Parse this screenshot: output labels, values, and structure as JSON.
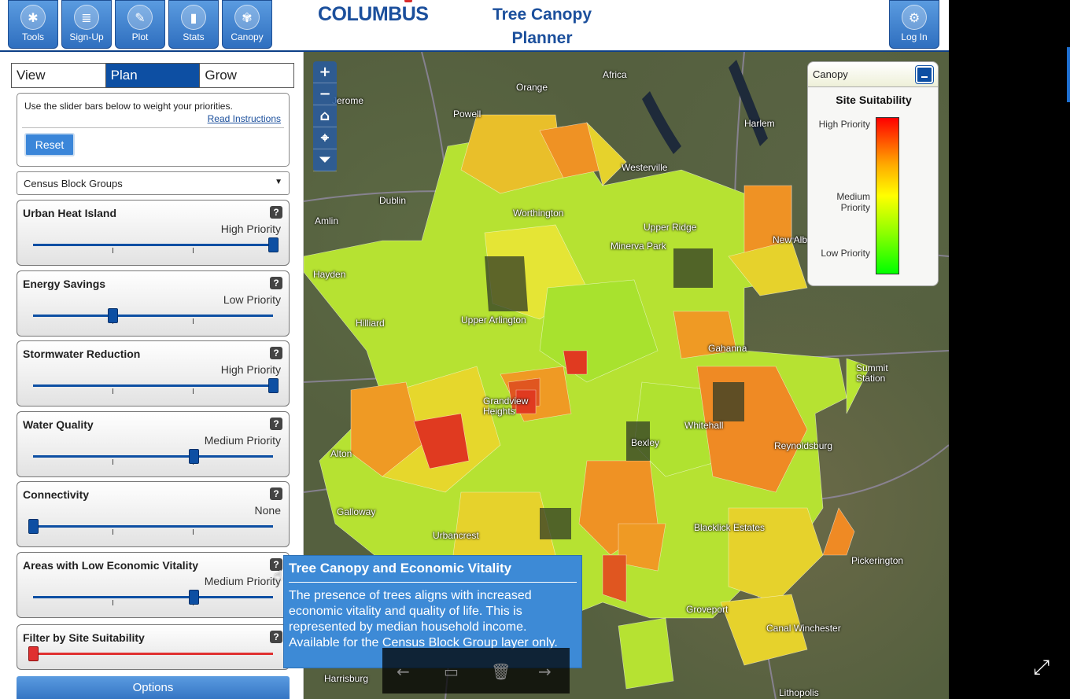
{
  "header": {
    "tools": [
      {
        "label": "Tools",
        "icon": "wrench-icon",
        "glyph": "✱"
      },
      {
        "label": "Sign-Up",
        "icon": "clipboard-icon",
        "glyph": "≣"
      },
      {
        "label": "Plot",
        "icon": "pencil-icon",
        "glyph": "✎"
      },
      {
        "label": "Stats",
        "icon": "bar-chart-icon",
        "glyph": "▮"
      },
      {
        "label": "Canopy",
        "icon": "tree-icon",
        "glyph": "✾"
      }
    ],
    "logo": {
      "pre": "COLUMB",
      "u": "U",
      "post": "S"
    },
    "title_line1": "Tree Canopy",
    "title_line2": "Planner",
    "login_label": "Log In",
    "login_glyph": "⚙"
  },
  "tabs": [
    "View",
    "Plan",
    "Grow"
  ],
  "instructions": {
    "text": "Use the slider bars below to weight your priorities.",
    "link": "Read Instructions",
    "reset": "Reset"
  },
  "layer_select": {
    "value": "Census Block Groups",
    "arrow": "▼"
  },
  "sliders": [
    {
      "title": "Urban Heat Island",
      "priority": "High Priority",
      "level": 1.0
    },
    {
      "title": "Energy Savings",
      "priority": "Low Priority",
      "level": 0.33
    },
    {
      "title": "Stormwater Reduction",
      "priority": "High Priority",
      "level": 1.0
    },
    {
      "title": "Water Quality",
      "priority": "Medium Priority",
      "level": 0.67
    },
    {
      "title": "Connectivity",
      "priority": "None",
      "level": 0.0
    },
    {
      "title": "Areas with Low Economic Vitality",
      "priority": "Medium Priority",
      "level": 0.67
    }
  ],
  "filter": {
    "title": "Filter by Site Suitability",
    "level": 0.0
  },
  "help_glyph": "?",
  "options_label": "Options",
  "map": {
    "zoom": [
      "+",
      "−",
      "⌂",
      "⌖",
      "⏷"
    ],
    "places": [
      "Orange",
      "Africa",
      "Powell",
      "Harlem",
      "Westerville",
      "Dublin",
      "Worthington",
      "Amlin",
      "New Albany",
      "Hayden",
      "Hilliard",
      "Upper Arlington",
      "Gahanna",
      "Summit Station",
      "Grandview Heights",
      "Whitehall",
      "Reynoldsburg",
      "Bexley",
      "Galloway",
      "Urbancrest",
      "Blacklick Estates",
      "Pickerington",
      "Groveport",
      "Canal Winchester",
      "Harrisburg",
      "Lithopolis",
      "Jerome",
      "Minerva Park",
      "Upper Ridge",
      "Alton"
    ],
    "legend": {
      "title": "Canopy",
      "subtitle": "Site Suitability",
      "high": "High Priority",
      "medium": "Medium Priority",
      "low": "Low Priority"
    }
  },
  "popup": {
    "title": "Tree Canopy and Economic Vitality",
    "body": "The presence of trees aligns with increased economic vitality and quality of life. This is represented by median household income. Available for the Census Block Group layer only."
  },
  "nav": [
    "←",
    "▭",
    "🗑",
    "→"
  ],
  "expand_glyph": "⤢",
  "cursor_glyph": "☝"
}
